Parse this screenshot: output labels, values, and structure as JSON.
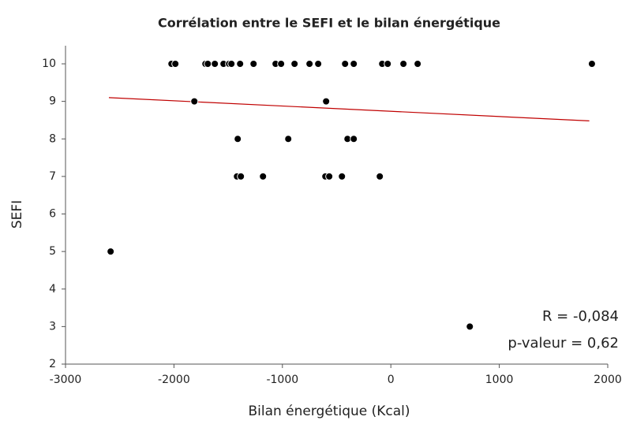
{
  "chart_data": {
    "type": "scatter",
    "title": "Corrélation entre le SEFI et le bilan énergétique",
    "x_label": "Bilan énergétique (Kcal)",
    "y_label": "SEFI",
    "x": [
      -2023,
      -1987,
      -1710,
      -1688,
      -1623,
      -1543,
      -1492,
      -1470,
      -1390,
      -1266,
      -1063,
      -1012,
      -888,
      -750,
      -670,
      -422,
      -342,
      -80,
      -29,
      116,
      247,
      1854,
      -1812,
      -597,
      -1412,
      -946,
      -400,
      -342,
      -1419,
      -1383,
      -1179,
      -604,
      -568,
      -451,
      -102,
      -2584,
      728
    ],
    "values": [
      10,
      10,
      10,
      10,
      10,
      10,
      10,
      10,
      10,
      10,
      10,
      10,
      10,
      10,
      10,
      10,
      10,
      10,
      10,
      10,
      10,
      10,
      9,
      9,
      8,
      8,
      8,
      8,
      7,
      7,
      7,
      7,
      7,
      7,
      7,
      5,
      3
    ],
    "color": "#000000",
    "trendline": {
      "x": [
        -2600,
        1830
      ],
      "y": [
        9.1,
        8.48
      ],
      "color": "#c00000"
    },
    "annotations": [
      "R = -0,084",
      "p-valeur = 0,62"
    ],
    "xlim": [
      -3000,
      2000
    ],
    "xticks": [
      -3000,
      -2000,
      -1000,
      0,
      1000,
      2000
    ],
    "ylim": [
      2,
      10
    ],
    "yticks": [
      2,
      3,
      4,
      5,
      6,
      7,
      8,
      9,
      10
    ],
    "grid": false
  }
}
